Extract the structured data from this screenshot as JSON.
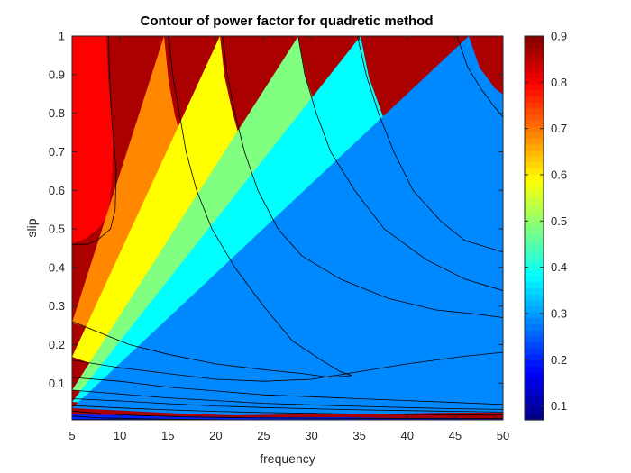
{
  "chart_data": {
    "type": "contour",
    "title": "Contour of power factor for quadretic method",
    "xlabel": "frequency",
    "ylabel": "slip",
    "xlim": [
      5,
      50
    ],
    "ylim": [
      0.005,
      1
    ],
    "xticks": [
      5,
      10,
      15,
      20,
      25,
      30,
      35,
      40,
      45,
      50
    ],
    "yticks": [
      0.1,
      0.2,
      0.3,
      0.4,
      0.5,
      0.6,
      0.7,
      0.8,
      0.9,
      1
    ],
    "ytick_labels": [
      "0.1",
      "0.2",
      "0.3",
      "0.4",
      "0.5",
      "0.6",
      "0.7",
      "0.8",
      "0.9",
      "1"
    ],
    "grid": false,
    "colormap": "jet",
    "colorbar": {
      "range": [
        0.07,
        0.9
      ],
      "ticks": [
        0.1,
        0.2,
        0.3,
        0.4,
        0.5,
        0.6,
        0.7,
        0.8,
        0.9
      ],
      "tick_labels": [
        "0.1",
        "0.2",
        "0.3",
        "0.4",
        "0.5",
        "0.6",
        "0.7",
        "0.8",
        "0.9"
      ]
    },
    "levels": [
      {
        "value": 0.9,
        "color": "#aa0000"
      },
      {
        "value": 0.8,
        "color": "#ff0000"
      },
      {
        "value": 0.7,
        "color": "#ff8800"
      },
      {
        "value": 0.6,
        "color": "#ffff00"
      },
      {
        "value": 0.5,
        "color": "#80ff80"
      },
      {
        "value": 0.4,
        "color": "#00ffff"
      },
      {
        "value": 0.3,
        "color": "#0088ff"
      },
      {
        "value": 0.2,
        "color": "#0022ff"
      },
      {
        "value": 0.1,
        "color": "#000099"
      }
    ],
    "contour_lines": [
      {
        "level": 0.85,
        "points": [
          [
            6.3,
            1
          ],
          [
            8.8,
            1
          ],
          [
            8.9,
            0.9
          ],
          [
            9.1,
            0.8
          ],
          [
            9.6,
            0.65
          ],
          [
            9.5,
            0.55
          ],
          [
            9.0,
            0.5
          ],
          [
            7.6,
            0.47
          ],
          [
            6.6,
            0.46
          ],
          [
            5,
            0.46
          ]
        ]
      },
      {
        "level": 0.75,
        "points": [
          [
            15.1,
            1
          ],
          [
            15.5,
            0.9
          ],
          [
            16.2,
            0.8
          ],
          [
            16.9,
            0.7
          ],
          [
            18,
            0.6
          ],
          [
            19.6,
            0.5
          ],
          [
            22,
            0.4
          ],
          [
            25,
            0.3
          ],
          [
            28,
            0.21
          ],
          [
            31,
            0.16
          ],
          [
            33,
            0.13
          ],
          [
            34.2,
            0.12
          ],
          [
            32,
            0.115
          ],
          [
            29,
            0.125
          ],
          [
            25,
            0.135
          ],
          [
            20,
            0.15
          ],
          [
            15,
            0.175
          ],
          [
            11,
            0.2
          ],
          [
            8,
            0.23
          ],
          [
            5,
            0.26
          ]
        ]
      },
      {
        "level": 0.65,
        "points": [
          [
            20.7,
            1
          ],
          [
            21.2,
            0.9
          ],
          [
            22,
            0.8
          ],
          [
            23,
            0.7
          ],
          [
            24.4,
            0.6
          ],
          [
            26.5,
            0.5
          ],
          [
            29,
            0.43
          ],
          [
            33,
            0.37
          ],
          [
            38,
            0.32
          ],
          [
            43,
            0.29
          ],
          [
            47,
            0.28
          ],
          [
            50,
            0.27
          ],
          [
            50,
            0.18
          ],
          [
            46,
            0.17
          ],
          [
            40,
            0.15
          ],
          [
            35,
            0.13
          ],
          [
            30,
            0.11
          ],
          [
            25,
            0.105
          ],
          [
            20,
            0.11
          ],
          [
            15,
            0.125
          ],
          [
            10,
            0.14
          ],
          [
            5,
            0.16
          ]
        ]
      },
      {
        "level": 0.55,
        "points": [
          [
            28.6,
            1
          ],
          [
            29.3,
            0.9
          ],
          [
            30.5,
            0.8
          ],
          [
            32,
            0.7
          ],
          [
            34.5,
            0.6
          ],
          [
            37.6,
            0.5
          ],
          [
            42,
            0.42
          ],
          [
            46,
            0.37
          ],
          [
            50,
            0.34
          ],
          [
            50,
            0.045
          ],
          [
            45,
            0.05
          ],
          [
            40,
            0.055
          ],
          [
            35,
            0.06
          ],
          [
            30,
            0.065
          ],
          [
            25,
            0.07
          ],
          [
            20,
            0.08
          ],
          [
            15,
            0.09
          ],
          [
            10,
            0.105
          ],
          [
            5,
            0.115
          ]
        ]
      },
      {
        "level": 0.45,
        "points": [
          [
            34.8,
            1
          ],
          [
            35.7,
            0.9
          ],
          [
            37,
            0.8
          ],
          [
            38.6,
            0.7
          ],
          [
            40.6,
            0.6
          ],
          [
            43.5,
            0.52
          ],
          [
            46,
            0.47
          ],
          [
            50,
            0.44
          ],
          [
            50,
            0.032
          ],
          [
            45,
            0.034
          ],
          [
            40,
            0.037
          ],
          [
            35,
            0.04
          ],
          [
            30,
            0.044
          ],
          [
            25,
            0.048
          ],
          [
            20,
            0.055
          ],
          [
            15,
            0.062
          ],
          [
            10,
            0.072
          ],
          [
            5,
            0.082
          ]
        ]
      },
      {
        "level": 0.35,
        "points": [
          [
            45.2,
            1
          ],
          [
            46.3,
            0.92
          ],
          [
            47.8,
            0.86
          ],
          [
            49,
            0.82
          ],
          [
            50,
            0.79
          ],
          [
            50,
            0.025
          ],
          [
            45,
            0.027
          ],
          [
            40,
            0.029
          ],
          [
            35,
            0.031
          ],
          [
            30,
            0.034
          ],
          [
            25,
            0.037
          ],
          [
            20,
            0.041
          ],
          [
            15,
            0.047
          ],
          [
            10,
            0.054
          ],
          [
            5,
            0.06
          ]
        ]
      },
      {
        "level": 0.25,
        "points": [
          [
            5,
            0.042
          ],
          [
            10,
            0.036
          ],
          [
            15,
            0.031
          ],
          [
            20,
            0.027
          ],
          [
            25,
            0.024
          ],
          [
            30,
            0.022
          ],
          [
            35,
            0.02
          ],
          [
            40,
            0.019
          ],
          [
            45,
            0.018
          ],
          [
            50,
            0.017
          ]
        ]
      },
      {
        "level": 0.15,
        "points": [
          [
            5,
            0.028
          ],
          [
            8,
            0.021
          ],
          [
            12,
            0.016
          ],
          [
            18,
            0.012
          ],
          [
            25,
            0.01
          ],
          [
            35,
            0.009
          ],
          [
            45,
            0.008
          ],
          [
            50,
            0.008
          ]
        ]
      },
      {
        "level": 0.05,
        "points": [
          [
            5,
            0.015
          ],
          [
            8,
            0.01
          ],
          [
            14,
            0.007
          ],
          [
            22,
            0.005
          ],
          [
            50,
            0.005
          ]
        ]
      }
    ]
  }
}
